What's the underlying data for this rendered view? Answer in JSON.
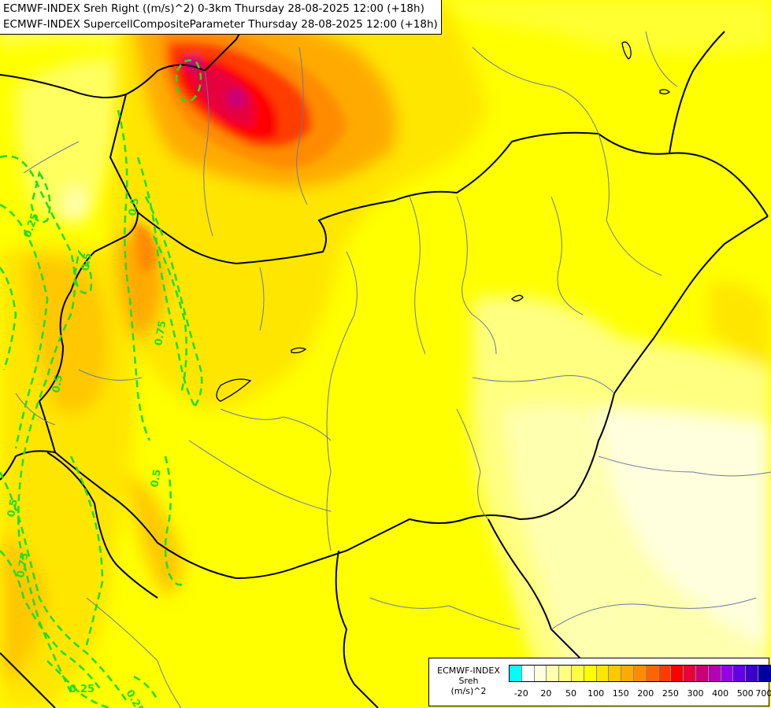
{
  "titles": {
    "line1": "ECMWF-INDEX Sreh Right ((m/s)^2) 0-3km Thursday 28-08-2025 12:00 (+18h)",
    "line2": "ECMWF-INDEX SupercellCompositeParameter Thursday 28-08-2025 12:00 (+18h)"
  },
  "legend": {
    "line1": "ECMWF-INDEX",
    "line2": "Sreh",
    "line3": "(m/s)^2",
    "colors": [
      "#00ffff",
      "#ffffff",
      "#ffffdd",
      "#ffffb0",
      "#ffff80",
      "#ffff40",
      "#ffff00",
      "#ffe600",
      "#ffc800",
      "#ffaa00",
      "#ff8c00",
      "#ff6400",
      "#ff3c00",
      "#ff0000",
      "#e6003c",
      "#c80078",
      "#b400b4",
      "#9600e6",
      "#6400e6",
      "#3c00c8",
      "#0000a0"
    ],
    "ticks": [
      "-20",
      "20",
      "50",
      "100",
      "150",
      "200",
      "250",
      "300",
      "400",
      "500",
      "700"
    ]
  },
  "contours": {
    "labels": [
      "0.25",
      "0.5",
      "0.5",
      "0.75",
      "0.5",
      "0.5",
      "0.75",
      "0.25",
      "0.5",
      "0.25"
    ]
  }
}
